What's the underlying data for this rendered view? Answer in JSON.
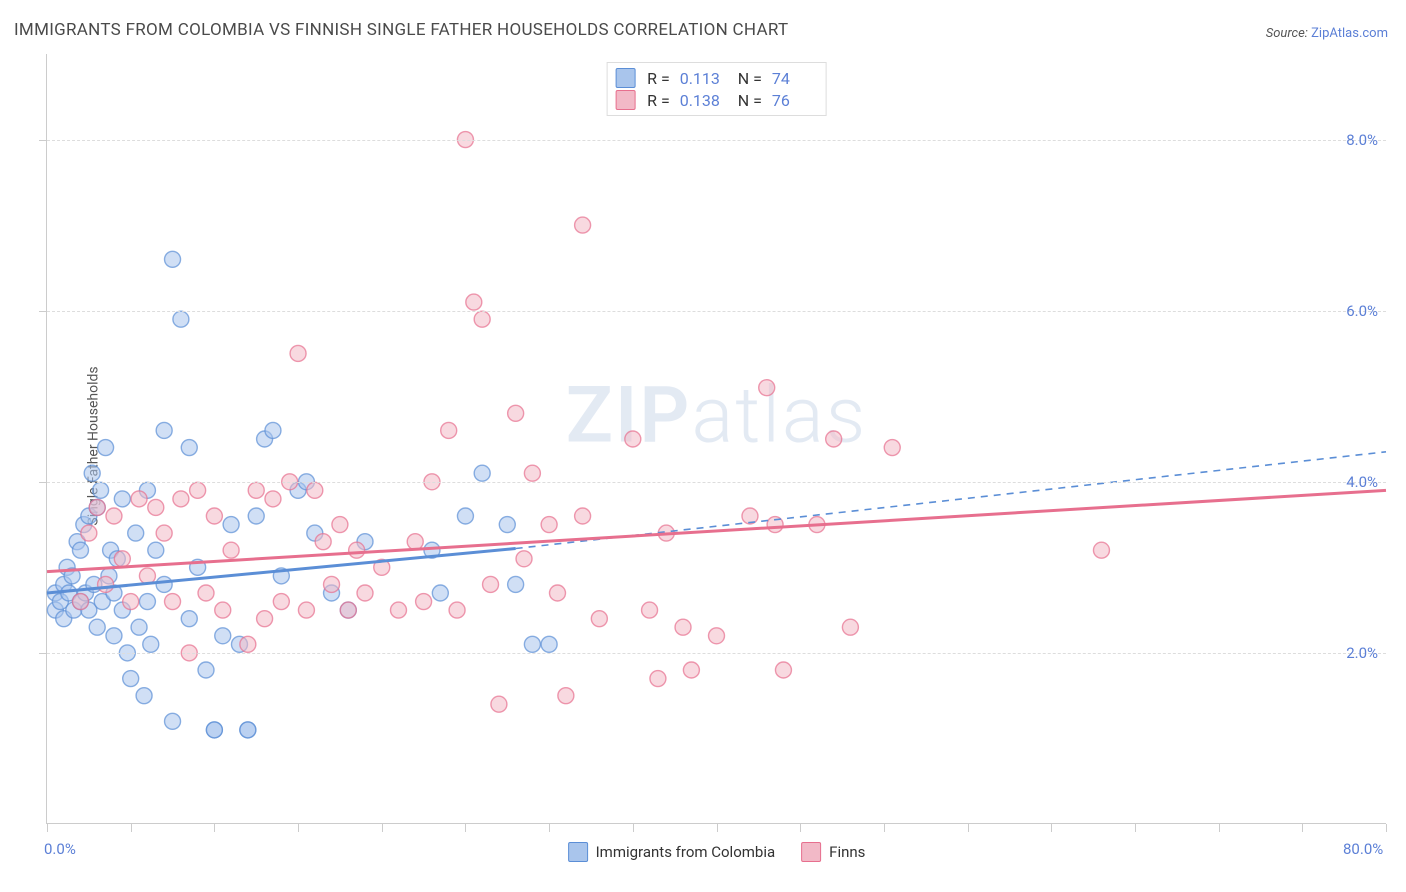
{
  "title": "IMMIGRANTS FROM COLOMBIA VS FINNISH SINGLE FATHER HOUSEHOLDS CORRELATION CHART",
  "source": {
    "label": "Source:",
    "value": "ZipAtlas.com"
  },
  "ylabel": "Single Father Households",
  "watermark": {
    "bold": "ZIP",
    "rest": "atlas"
  },
  "chart": {
    "type": "scatter",
    "xlim": [
      0,
      80
    ],
    "ylim": [
      0,
      9
    ],
    "x_axis_labels": {
      "min": "0.0%",
      "max": "80.0%"
    },
    "y_ticks": [
      2.0,
      4.0,
      6.0,
      8.0
    ],
    "y_tick_labels": [
      "2.0%",
      "4.0%",
      "6.0%",
      "8.0%"
    ],
    "x_ticks": [
      0,
      5,
      10,
      15,
      20,
      25,
      30,
      35,
      40,
      45,
      50,
      55,
      60,
      65,
      70,
      75,
      80
    ],
    "grid_color": "#dddddd",
    "axis_color": "#cccccc",
    "background_color": "#ffffff",
    "tick_label_color": "#5b7fd6",
    "marker_radius": 8,
    "marker_opacity": 0.55,
    "series": [
      {
        "name": "Immigrants from Colombia",
        "color_fill": "#a9c5ec",
        "color_stroke": "#5b8ed6",
        "r": 0.113,
        "n": 74,
        "trend": {
          "x1": 0,
          "y1": 2.7,
          "x2": 28,
          "y2": 3.22,
          "x2_ext": 80,
          "y2_ext": 4.35,
          "solid_until_x": 28
        },
        "points": [
          [
            0.5,
            2.5
          ],
          [
            0.5,
            2.7
          ],
          [
            0.8,
            2.6
          ],
          [
            1.0,
            2.8
          ],
          [
            1.0,
            2.4
          ],
          [
            1.2,
            3.0
          ],
          [
            1.3,
            2.7
          ],
          [
            1.5,
            2.9
          ],
          [
            1.6,
            2.5
          ],
          [
            1.8,
            3.3
          ],
          [
            2.0,
            2.6
          ],
          [
            2.0,
            3.2
          ],
          [
            2.2,
            3.5
          ],
          [
            2.3,
            2.7
          ],
          [
            2.5,
            2.5
          ],
          [
            2.5,
            3.6
          ],
          [
            2.7,
            4.1
          ],
          [
            2.8,
            2.8
          ],
          [
            3.0,
            3.7
          ],
          [
            3.0,
            2.3
          ],
          [
            3.2,
            3.9
          ],
          [
            3.3,
            2.6
          ],
          [
            3.5,
            4.4
          ],
          [
            3.7,
            2.9
          ],
          [
            3.8,
            3.2
          ],
          [
            4.0,
            2.2
          ],
          [
            4.0,
            2.7
          ],
          [
            4.2,
            3.1
          ],
          [
            4.5,
            3.8
          ],
          [
            4.5,
            2.5
          ],
          [
            4.8,
            2.0
          ],
          [
            5.0,
            1.7
          ],
          [
            5.3,
            3.4
          ],
          [
            5.5,
            2.3
          ],
          [
            5.8,
            1.5
          ],
          [
            6.0,
            2.6
          ],
          [
            6.0,
            3.9
          ],
          [
            6.2,
            2.1
          ],
          [
            6.5,
            3.2
          ],
          [
            7.0,
            2.8
          ],
          [
            7.0,
            4.6
          ],
          [
            7.5,
            1.2
          ],
          [
            7.5,
            6.6
          ],
          [
            8.0,
            5.9
          ],
          [
            8.5,
            2.4
          ],
          [
            8.5,
            4.4
          ],
          [
            9.0,
            3.0
          ],
          [
            9.5,
            1.8
          ],
          [
            10.0,
            1.1
          ],
          [
            10.0,
            1.1
          ],
          [
            10.5,
            2.2
          ],
          [
            11.0,
            3.5
          ],
          [
            11.5,
            2.1
          ],
          [
            12.0,
            1.1
          ],
          [
            12.0,
            1.1
          ],
          [
            12.5,
            3.6
          ],
          [
            13.0,
            4.5
          ],
          [
            13.5,
            4.6
          ],
          [
            14.0,
            2.9
          ],
          [
            15.0,
            3.9
          ],
          [
            15.5,
            4.0
          ],
          [
            16.0,
            3.4
          ],
          [
            17.0,
            2.7
          ],
          [
            18.0,
            2.5
          ],
          [
            19.0,
            3.3
          ],
          [
            23.0,
            3.2
          ],
          [
            23.5,
            2.7
          ],
          [
            25.0,
            3.6
          ],
          [
            26.0,
            4.1
          ],
          [
            27.5,
            3.5
          ],
          [
            28.0,
            2.8
          ],
          [
            29.0,
            2.1
          ],
          [
            30.0,
            2.1
          ]
        ]
      },
      {
        "name": "Finns",
        "color_fill": "#f2b9c7",
        "color_stroke": "#e76f8e",
        "r": 0.138,
        "n": 76,
        "trend": {
          "x1": 0,
          "y1": 2.95,
          "x2": 80,
          "y2": 3.9,
          "solid_until_x": 80
        },
        "points": [
          [
            2.0,
            2.6
          ],
          [
            2.5,
            3.4
          ],
          [
            3.0,
            3.7
          ],
          [
            3.5,
            2.8
          ],
          [
            4.0,
            3.6
          ],
          [
            4.5,
            3.1
          ],
          [
            5.0,
            2.6
          ],
          [
            5.5,
            3.8
          ],
          [
            6.0,
            2.9
          ],
          [
            6.5,
            3.7
          ],
          [
            7.0,
            3.4
          ],
          [
            7.5,
            2.6
          ],
          [
            8.0,
            3.8
          ],
          [
            8.5,
            2.0
          ],
          [
            9.0,
            3.9
          ],
          [
            9.5,
            2.7
          ],
          [
            10.0,
            3.6
          ],
          [
            10.5,
            2.5
          ],
          [
            11.0,
            3.2
          ],
          [
            12.0,
            2.1
          ],
          [
            12.5,
            3.9
          ],
          [
            13.0,
            2.4
          ],
          [
            13.5,
            3.8
          ],
          [
            14.0,
            2.6
          ],
          [
            14.5,
            4.0
          ],
          [
            15.0,
            5.5
          ],
          [
            15.5,
            2.5
          ],
          [
            16.0,
            3.9
          ],
          [
            16.5,
            3.3
          ],
          [
            17.0,
            2.8
          ],
          [
            17.5,
            3.5
          ],
          [
            18.0,
            2.5
          ],
          [
            18.5,
            3.2
          ],
          [
            19.0,
            2.7
          ],
          [
            20.0,
            3.0
          ],
          [
            21.0,
            2.5
          ],
          [
            22.0,
            3.3
          ],
          [
            22.5,
            2.6
          ],
          [
            23.0,
            4.0
          ],
          [
            24.0,
            4.6
          ],
          [
            24.5,
            2.5
          ],
          [
            25.0,
            8.0
          ],
          [
            25.5,
            6.1
          ],
          [
            26.0,
            5.9
          ],
          [
            26.5,
            2.8
          ],
          [
            27.0,
            1.4
          ],
          [
            28.0,
            4.8
          ],
          [
            28.5,
            3.1
          ],
          [
            29.0,
            4.1
          ],
          [
            30.0,
            3.5
          ],
          [
            30.5,
            2.7
          ],
          [
            31.0,
            1.5
          ],
          [
            32.0,
            3.6
          ],
          [
            32.0,
            7.0
          ],
          [
            33.0,
            2.4
          ],
          [
            35.0,
            4.5
          ],
          [
            36.0,
            2.5
          ],
          [
            36.5,
            1.7
          ],
          [
            37.0,
            3.4
          ],
          [
            38.0,
            2.3
          ],
          [
            38.5,
            1.8
          ],
          [
            40.0,
            2.2
          ],
          [
            42.0,
            3.6
          ],
          [
            43.0,
            5.1
          ],
          [
            43.5,
            3.5
          ],
          [
            44.0,
            1.8
          ],
          [
            46.0,
            3.5
          ],
          [
            47.0,
            4.5
          ],
          [
            48.0,
            2.3
          ],
          [
            50.5,
            4.4
          ],
          [
            63.0,
            3.2
          ]
        ]
      }
    ],
    "legend_bottom": [
      {
        "label": "Immigrants from Colombia",
        "fill": "#a9c5ec",
        "stroke": "#5b8ed6"
      },
      {
        "label": "Finns",
        "fill": "#f2b9c7",
        "stroke": "#e76f8e"
      }
    ]
  }
}
